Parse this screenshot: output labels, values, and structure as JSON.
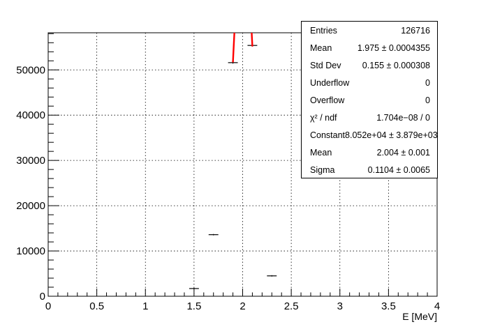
{
  "chart_data": {
    "type": "histogram",
    "xlabel": "E [MeV]",
    "ylabel": "",
    "xlim": [
      0,
      4
    ],
    "ylim": [
      0,
      58200
    ],
    "x_ticks": [
      "0",
      "0.5",
      "1",
      "1.5",
      "2",
      "2.5",
      "3",
      "3.5",
      "4"
    ],
    "y_ticks": [
      "0",
      "10000",
      "20000",
      "30000",
      "40000",
      "50000"
    ],
    "grid": true,
    "bins": [
      {
        "x0": 1.45,
        "x1": 1.55,
        "y": 1700
      },
      {
        "x0": 1.65,
        "x1": 1.75,
        "y": 13600
      },
      {
        "x0": 1.85,
        "x1": 1.95,
        "y": 51600
      },
      {
        "x0": 2.05,
        "x1": 2.15,
        "y": 55400
      },
      {
        "x0": 2.25,
        "x1": 2.35,
        "y": 4500
      }
    ],
    "fit": {
      "function": "gaus",
      "color": "#ff0000",
      "constant": 80520,
      "mean": 2.004,
      "sigma": 0.1104,
      "range": [
        1.9,
        2.1
      ]
    }
  },
  "stats_box": {
    "rows": [
      {
        "label": "Entries",
        "value": "126716"
      },
      {
        "label": "Mean",
        "value": "1.975 ± 0.0004355"
      },
      {
        "label": "Std Dev",
        "value": "0.155 ± 0.000308"
      },
      {
        "label": "Underflow",
        "value": "0"
      },
      {
        "label": "Overflow",
        "value": "0"
      },
      {
        "label": "χ² / ndf",
        "value": "1.704e−08 / 0"
      },
      {
        "label": "Constant",
        "value": "8.052e+04 ± 3.879e+03"
      },
      {
        "label": "Mean",
        "value": "2.004 ± 0.001"
      },
      {
        "label": "Sigma",
        "value": "0.1104 ± 0.0065"
      }
    ]
  }
}
